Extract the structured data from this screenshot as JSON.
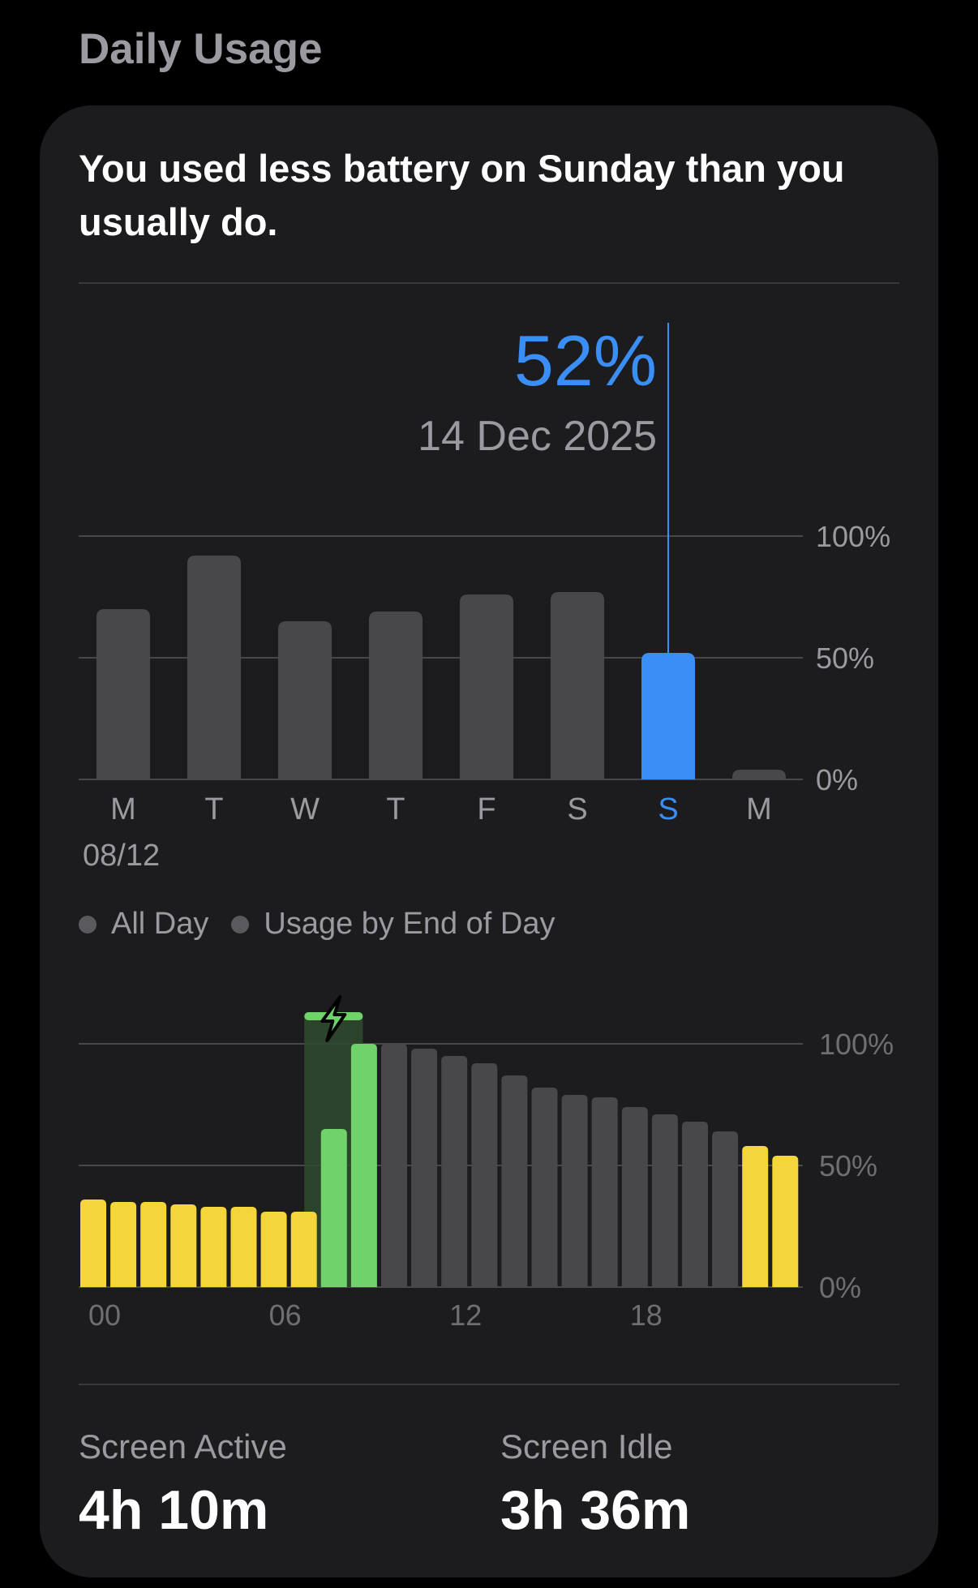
{
  "section_title": "Daily Usage",
  "headline": "You used less battery on Sunday than you usually do.",
  "selection": {
    "value_label": "52%",
    "date_label": "14 Dec 2025"
  },
  "legend": {
    "all_day": "All Day",
    "end_of_day": "Usage by End of Day"
  },
  "chart_data": [
    {
      "type": "bar",
      "categories": [
        "M",
        "T",
        "W",
        "T",
        "F",
        "S",
        "S",
        "M"
      ],
      "values": [
        70,
        92,
        65,
        69,
        76,
        77,
        52,
        4
      ],
      "selected_index": 6,
      "date_start_label": "08/12",
      "ylim": [
        0,
        100
      ],
      "ytick_labels": [
        "100%",
        "50%",
        "0%"
      ],
      "grid": true,
      "colors": {
        "bar": "#48484a",
        "selected": "#3a8ef6",
        "grid": "#48484a"
      }
    },
    {
      "type": "bar",
      "x": [
        0,
        1,
        2,
        3,
        4,
        5,
        6,
        7,
        8,
        9,
        10,
        11,
        12,
        13,
        14,
        15,
        16,
        17,
        18,
        19,
        20,
        21,
        22,
        23
      ],
      "values": [
        36,
        35,
        35,
        34,
        33,
        33,
        31,
        31,
        65,
        100,
        100,
        98,
        95,
        92,
        87,
        82,
        79,
        78,
        74,
        71,
        68,
        64,
        58,
        54
      ],
      "state": [
        "low",
        "low",
        "low",
        "low",
        "low",
        "low",
        "low",
        "low",
        "charging",
        "charging",
        "normal",
        "normal",
        "normal",
        "normal",
        "normal",
        "normal",
        "normal",
        "normal",
        "normal",
        "normal",
        "normal",
        "normal",
        "low",
        "low"
      ],
      "charging_window": [
        7.5,
        9.5
      ],
      "xtick_labels": [
        "00",
        "06",
        "12",
        "18"
      ],
      "ylim": [
        0,
        100
      ],
      "ytick_labels": [
        "100%",
        "50%",
        "0%"
      ],
      "grid": true,
      "colors": {
        "low": "#f5d63a",
        "charging": "#6fd26a",
        "normal": "#48484a",
        "charging_band": "#2f4a2f"
      }
    }
  ],
  "metrics": [
    {
      "label": "Screen Active",
      "value": "4h 10m"
    },
    {
      "label": "Screen Idle",
      "value": "3h 36m"
    }
  ],
  "icons": {
    "charging": "lightning-bolt-icon"
  }
}
